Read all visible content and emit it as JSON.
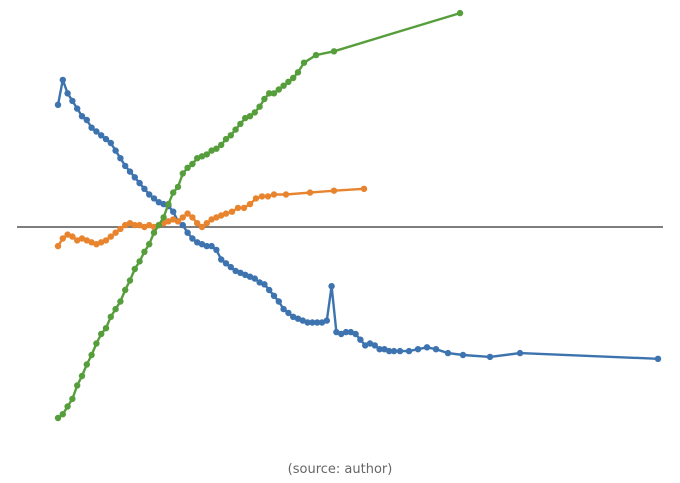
{
  "caption": "(source: author)",
  "chart_data": {
    "type": "line",
    "title": "",
    "xlabel": "",
    "ylabel": "",
    "xlim": [
      0,
      100
    ],
    "ylim": [
      -100,
      100
    ],
    "zero_line": 0,
    "grid": false,
    "axes_visible": false,
    "series": [
      {
        "color": "#3d73ae",
        "x": [
          0.0,
          0.8,
          1.6,
          2.4,
          3.2,
          4.0,
          4.8,
          5.6,
          6.4,
          7.2,
          8.0,
          8.8,
          9.6,
          10.4,
          11.2,
          12.0,
          12.8,
          13.6,
          14.4,
          15.2,
          16.0,
          16.8,
          17.6,
          18.4,
          19.2,
          20.0,
          20.8,
          21.6,
          22.4,
          23.2,
          24.0,
          24.8,
          25.6,
          26.4,
          27.2,
          28.0,
          28.8,
          29.6,
          30.4,
          31.2,
          32.0,
          32.8,
          33.6,
          34.4,
          35.2,
          36.0,
          36.8,
          37.6,
          38.4,
          39.2,
          40.0,
          40.8,
          41.6,
          42.4,
          43.2,
          44.0,
          44.8,
          45.6,
          46.4,
          47.2,
          48.0,
          48.8,
          49.6,
          50.4,
          51.2,
          52.0,
          52.8,
          53.6,
          54.4,
          55.2,
          56.0,
          57.0,
          58.5,
          60.0,
          61.5,
          63.0,
          65.0,
          67.5,
          72.0,
          77.0,
          100.0
        ],
        "y": [
          64,
          77,
          70,
          66,
          62,
          58,
          56,
          52,
          50,
          48,
          46,
          44,
          40,
          36,
          32,
          29,
          26,
          23,
          20,
          17,
          15,
          13,
          12,
          11,
          8,
          3,
          1,
          -3,
          -6,
          -8,
          -9,
          -10,
          -10,
          -12,
          -17,
          -19,
          -21,
          -23,
          -24,
          -25,
          -26,
          -27,
          -29,
          -30,
          -33,
          -36,
          -39,
          -43,
          -45,
          -47,
          -48,
          -49,
          -50,
          -50,
          -50,
          -50,
          -49,
          -31,
          -55,
          -56,
          -55,
          -55,
          -56,
          -59,
          -62,
          -61,
          -62,
          -64,
          -64,
          -65,
          -65,
          -65,
          -65,
          -64,
          -63,
          -64,
          -66,
          -67,
          -68,
          -66,
          -69
        ]
      },
      {
        "color": "#e8842e",
        "x": [
          0.0,
          0.8,
          1.6,
          2.4,
          3.2,
          4.0,
          4.8,
          5.6,
          6.4,
          7.2,
          8.0,
          8.8,
          9.6,
          10.4,
          11.2,
          12.0,
          12.8,
          13.6,
          14.4,
          15.2,
          16.0,
          16.8,
          17.6,
          18.4,
          19.2,
          20.0,
          20.8,
          21.6,
          22.4,
          23.2,
          24.0,
          24.8,
          25.6,
          26.4,
          27.2,
          28.0,
          29.0,
          30.0,
          31.0,
          32.0,
          33.0,
          34.0,
          35.0,
          36.0,
          38.0,
          42.0,
          46.0,
          51.0
        ],
        "y": [
          -10,
          -6,
          -4,
          -5,
          -7,
          -6,
          -7,
          -8,
          -9,
          -8,
          -7,
          -5,
          -3,
          -1,
          1,
          2,
          1,
          1,
          0,
          1,
          0,
          1,
          2,
          3,
          4,
          3,
          5,
          7,
          5,
          2,
          0,
          2,
          4,
          5,
          6,
          7,
          8,
          10,
          10,
          12,
          15,
          16,
          16,
          17,
          17,
          18,
          19,
          20
        ]
      },
      {
        "color": "#569e3c",
        "x": [
          0.0,
          0.8,
          1.6,
          2.4,
          3.2,
          4.0,
          4.8,
          5.6,
          6.4,
          7.2,
          8.0,
          8.8,
          9.6,
          10.4,
          11.2,
          12.0,
          12.8,
          13.6,
          14.4,
          15.2,
          16.0,
          16.8,
          17.6,
          18.4,
          19.2,
          20.0,
          20.8,
          21.6,
          22.4,
          23.2,
          24.0,
          24.8,
          25.6,
          26.4,
          27.2,
          28.0,
          28.8,
          29.6,
          30.4,
          31.2,
          32.0,
          32.8,
          33.6,
          34.4,
          35.2,
          36.0,
          36.8,
          37.6,
          38.4,
          39.2,
          40.0,
          41.0,
          43.0,
          46.0,
          67.0
        ],
        "y": [
          -100,
          -98,
          -94,
          -90,
          -83,
          -78,
          -72,
          -67,
          -61,
          -56,
          -53,
          -47,
          -43,
          -39,
          -33,
          -28,
          -22,
          -18,
          -13,
          -9,
          -3,
          1,
          5,
          12,
          18,
          21,
          28,
          31,
          33,
          36,
          37,
          38,
          40,
          41,
          43,
          46,
          48,
          51,
          54,
          57,
          58,
          60,
          63,
          67,
          70,
          70,
          72,
          74,
          76,
          78,
          81,
          86,
          90,
          92,
          112
        ]
      }
    ]
  }
}
